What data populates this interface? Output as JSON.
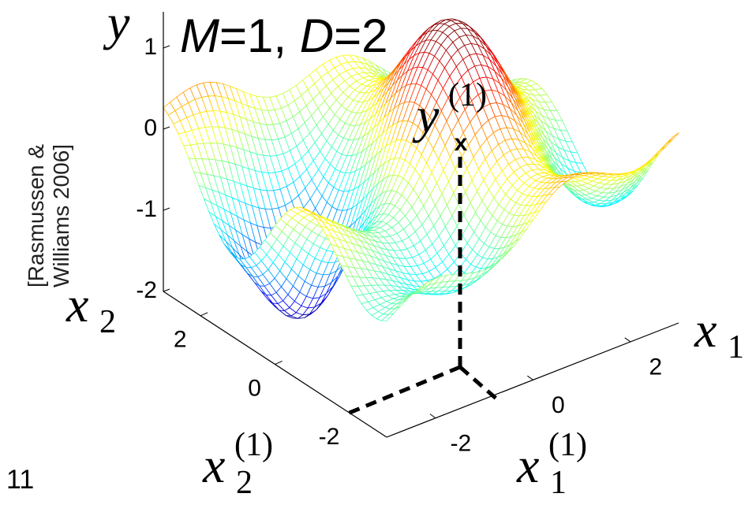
{
  "slide": {
    "title_parts": [
      "M",
      "=1, ",
      "D",
      "=2"
    ],
    "citation": [
      "[Rasmussen &",
      "Williams 2006]"
    ],
    "page_number": "11",
    "labels": {
      "y": {
        "base": "y"
      },
      "x1": {
        "base": "x",
        "sub": "1"
      },
      "x2": {
        "base": "x",
        "sub": "2"
      },
      "y_point": {
        "base": "y",
        "sup": "(1)"
      },
      "x1_point": {
        "base": "x",
        "sub": "1",
        "sup": "(1)"
      },
      "x2_point": {
        "base": "x",
        "sub": "2",
        "sup": "(1)"
      }
    },
    "point_marker": "x",
    "zticks": [
      1,
      0,
      -1,
      -2
    ],
    "x2ticks": [
      2,
      0,
      -2
    ],
    "x1ticks": [
      -2,
      0,
      2
    ]
  }
}
